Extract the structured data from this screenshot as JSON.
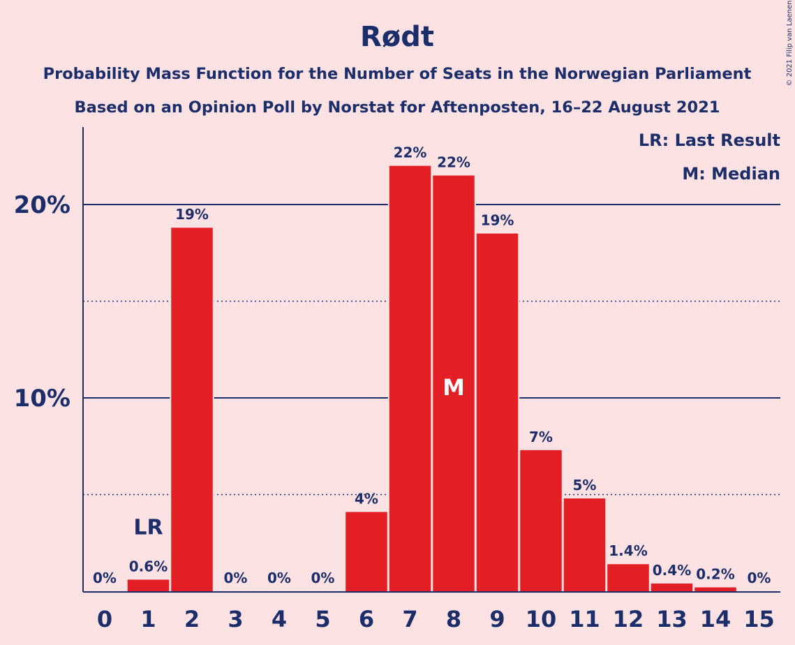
{
  "chart_data": {
    "type": "bar",
    "title": "Rødt",
    "subtitle": "Probability Mass Function for the Number of Seats in the Norwegian Parliament",
    "subtitle2": "Based on an Opinion Poll by Norstat for Aftenposten, 16–22 August 2021",
    "legend": [
      "LR: Last Result",
      "M: Median"
    ],
    "legend_position": "top-right",
    "copyright": "© 2021 Filip van Laenen",
    "categories": [
      "0",
      "1",
      "2",
      "3",
      "4",
      "5",
      "6",
      "7",
      "8",
      "9",
      "10",
      "11",
      "12",
      "13",
      "14",
      "15"
    ],
    "values": [
      0,
      0.6,
      18.8,
      0,
      0,
      0,
      4.1,
      22.0,
      21.5,
      18.5,
      7.3,
      4.8,
      1.4,
      0.4,
      0.2,
      0
    ],
    "value_labels": [
      "0%",
      "0.6%",
      "19%",
      "0%",
      "0%",
      "0%",
      "4%",
      "22%",
      "22%",
      "19%",
      "7%",
      "5%",
      "1.4%",
      "0.4%",
      "0.2%",
      "0%"
    ],
    "last_result_index": 1,
    "last_result_label": "LR",
    "median_index": 8,
    "median_label": "M",
    "ylim": [
      0,
      24
    ],
    "yticks": [
      10,
      20
    ],
    "ytick_labels": [
      "10%",
      "20%"
    ],
    "minor_gridlines": [
      5,
      15
    ],
    "grid": true,
    "bar_color": "#e31e24",
    "background_color": "#fde2e4",
    "text_color": "#1c2e6a"
  }
}
